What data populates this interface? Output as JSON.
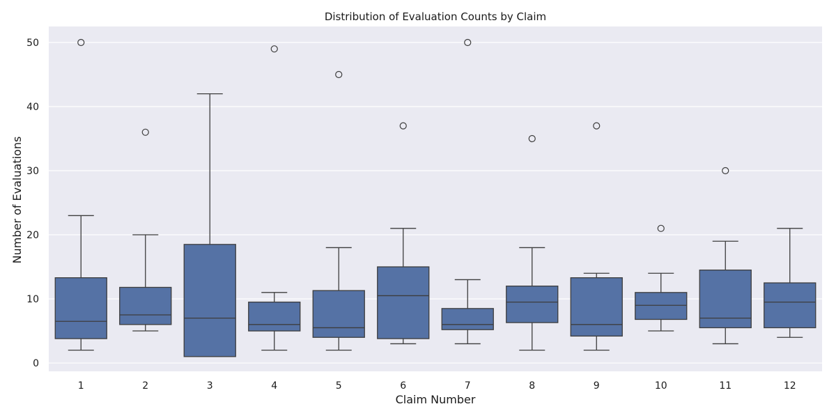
{
  "chart_data": {
    "type": "box",
    "title": "Distribution of Evaluation Counts by Claim",
    "xlabel": "Claim Number",
    "ylabel": "Number of Evaluations",
    "ylim": [
      -1.3,
      52.5
    ],
    "yticks": [
      0,
      10,
      20,
      30,
      40,
      50
    ],
    "grid": true,
    "colors": {
      "box": "#5572a5",
      "line": "#3d3d3d",
      "background": "#eaeaf2",
      "grid": "#ffffff"
    },
    "categories": [
      "1",
      "2",
      "3",
      "4",
      "5",
      "6",
      "7",
      "8",
      "9",
      "10",
      "11",
      "12"
    ],
    "boxes": [
      {
        "category": "1",
        "whisker_low": 2,
        "q1": 3.8,
        "median": 6.5,
        "q3": 13.3,
        "whisker_high": 23,
        "outliers": [
          50
        ]
      },
      {
        "category": "2",
        "whisker_low": 5,
        "q1": 6,
        "median": 7.5,
        "q3": 11.8,
        "whisker_high": 20,
        "outliers": [
          36
        ]
      },
      {
        "category": "3",
        "whisker_low": 1,
        "q1": 1,
        "median": 7,
        "q3": 18.5,
        "whisker_high": 42,
        "outliers": []
      },
      {
        "category": "4",
        "whisker_low": 2,
        "q1": 5,
        "median": 6,
        "q3": 9.5,
        "whisker_high": 11,
        "outliers": [
          49
        ]
      },
      {
        "category": "5",
        "whisker_low": 2,
        "q1": 4,
        "median": 5.5,
        "q3": 11.3,
        "whisker_high": 18,
        "outliers": [
          45
        ]
      },
      {
        "category": "6",
        "whisker_low": 3,
        "q1": 3.8,
        "median": 10.5,
        "q3": 15,
        "whisker_high": 21,
        "outliers": [
          37
        ]
      },
      {
        "category": "7",
        "whisker_low": 3,
        "q1": 5.2,
        "median": 6,
        "q3": 8.5,
        "whisker_high": 13,
        "outliers": [
          50
        ]
      },
      {
        "category": "8",
        "whisker_low": 2,
        "q1": 6.3,
        "median": 9.5,
        "q3": 12,
        "whisker_high": 18,
        "outliers": [
          35
        ]
      },
      {
        "category": "9",
        "whisker_low": 2,
        "q1": 4.2,
        "median": 6,
        "q3": 13.3,
        "whisker_high": 14,
        "outliers": [
          37
        ]
      },
      {
        "category": "10",
        "whisker_low": 5,
        "q1": 6.8,
        "median": 9,
        "q3": 11,
        "whisker_high": 14,
        "outliers": [
          21
        ]
      },
      {
        "category": "11",
        "whisker_low": 3,
        "q1": 5.5,
        "median": 7,
        "q3": 14.5,
        "whisker_high": 19,
        "outliers": [
          30
        ]
      },
      {
        "category": "12",
        "whisker_low": 4,
        "q1": 5.5,
        "median": 9.5,
        "q3": 12.5,
        "whisker_high": 21,
        "outliers": []
      }
    ]
  }
}
